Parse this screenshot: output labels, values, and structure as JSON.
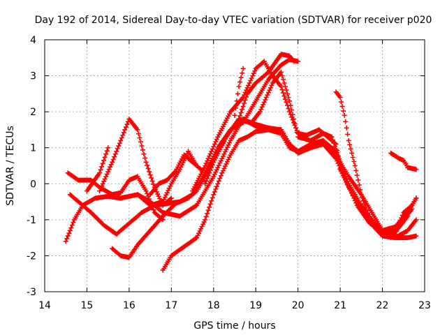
{
  "chart_data": {
    "type": "scatter",
    "title": "Day 192 of 2014, Sidereal Day-to-day VTEC variation (SDTVAR) for receiver p020",
    "xlabel": "GPS time / hours",
    "ylabel": "SDTVAR / TECUs",
    "xlim": [
      14,
      23
    ],
    "ylim": [
      -3,
      4
    ],
    "xticks": [
      "14",
      "15",
      "16",
      "17",
      "18",
      "19",
      "20",
      "21",
      "22",
      "23"
    ],
    "yticks": [
      "-3",
      "-2",
      "-1",
      "0",
      "1",
      "2",
      "3",
      "4"
    ],
    "grid": true,
    "marker": "+",
    "color": "#ff0000",
    "series": [
      {
        "name": "track-1",
        "points": [
          [
            14.5,
            -1.6
          ],
          [
            14.7,
            -1.0
          ],
          [
            14.9,
            -0.6
          ],
          [
            15.2,
            -0.4
          ],
          [
            15.5,
            -0.35
          ],
          [
            15.8,
            -0.4
          ],
          [
            16.2,
            -0.3
          ],
          [
            16.5,
            -0.5
          ],
          [
            16.8,
            -0.8
          ],
          [
            17.2,
            -0.9
          ],
          [
            17.6,
            -0.6
          ],
          [
            18.0,
            0.2
          ],
          [
            18.4,
            1.2
          ],
          [
            18.7,
            1.8
          ],
          [
            19.0,
            1.6
          ],
          [
            19.3,
            1.5
          ],
          [
            19.6,
            1.4
          ],
          [
            19.8,
            1.0
          ],
          [
            20.0,
            0.9
          ],
          [
            20.3,
            1.1
          ],
          [
            20.6,
            1.2
          ],
          [
            20.9,
            0.9
          ],
          [
            21.1,
            0.2
          ],
          [
            21.4,
            -0.6
          ],
          [
            21.7,
            -1.1
          ],
          [
            22.0,
            -1.3
          ],
          [
            22.3,
            -1.2
          ],
          [
            22.6,
            -0.8
          ],
          [
            22.8,
            -0.4
          ]
        ]
      },
      {
        "name": "track-2",
        "points": [
          [
            15.6,
            -1.8
          ],
          [
            15.8,
            -2.0
          ],
          [
            16.0,
            -2.05
          ],
          [
            16.2,
            -1.7
          ],
          [
            16.5,
            -1.3
          ],
          [
            16.8,
            -0.9
          ],
          [
            17.1,
            -0.55
          ],
          [
            17.4,
            -0.4
          ],
          [
            17.6,
            -0.2
          ],
          [
            17.8,
            0.2
          ],
          [
            18.1,
            0.9
          ],
          [
            18.4,
            1.5
          ],
          [
            18.7,
            1.75
          ],
          [
            19.0,
            1.65
          ],
          [
            19.3,
            1.55
          ],
          [
            19.6,
            1.5
          ],
          [
            19.8,
            1.1
          ],
          [
            20.0,
            0.9
          ],
          [
            20.3,
            1.0
          ],
          [
            20.6,
            1.1
          ],
          [
            20.9,
            0.7
          ],
          [
            21.2,
            -0.1
          ],
          [
            21.5,
            -0.7
          ],
          [
            21.8,
            -1.2
          ],
          [
            22.0,
            -1.45
          ],
          [
            22.3,
            -1.5
          ],
          [
            22.6,
            -1.3
          ],
          [
            22.8,
            -1.0
          ]
        ]
      },
      {
        "name": "track-3",
        "points": [
          [
            16.8,
            -2.4
          ],
          [
            17.0,
            -2.0
          ],
          [
            17.3,
            -1.75
          ],
          [
            17.6,
            -1.5
          ],
          [
            17.8,
            -1.0
          ],
          [
            18.0,
            -0.3
          ],
          [
            18.2,
            0.3
          ],
          [
            18.4,
            0.8
          ],
          [
            18.6,
            1.2
          ],
          [
            18.8,
            1.3
          ],
          [
            19.0,
            1.45
          ],
          [
            19.3,
            1.5
          ],
          [
            19.6,
            1.5
          ],
          [
            19.8,
            1.1
          ],
          [
            20.0,
            0.85
          ],
          [
            20.3,
            1.0
          ],
          [
            20.6,
            1.15
          ],
          [
            20.9,
            0.8
          ],
          [
            21.2,
            0.0
          ],
          [
            21.5,
            -0.6
          ],
          [
            21.8,
            -1.1
          ],
          [
            22.0,
            -1.3
          ],
          [
            22.3,
            -1.5
          ],
          [
            22.6,
            -1.5
          ],
          [
            22.8,
            -1.45
          ]
        ]
      },
      {
        "name": "track-4",
        "points": [
          [
            14.6,
            -0.3
          ],
          [
            14.8,
            -0.5
          ],
          [
            15.1,
            -0.8
          ],
          [
            15.4,
            -1.15
          ],
          [
            15.7,
            -1.4
          ],
          [
            16.0,
            -1.1
          ],
          [
            16.3,
            -0.8
          ],
          [
            16.6,
            -0.6
          ],
          [
            16.9,
            -0.55
          ],
          [
            17.2,
            -0.5
          ],
          [
            17.5,
            -0.3
          ],
          [
            17.8,
            0.3
          ],
          [
            18.1,
            1.0
          ],
          [
            18.4,
            1.5
          ],
          [
            18.7,
            1.7
          ],
          [
            19.0,
            2.3
          ],
          [
            19.3,
            2.9
          ],
          [
            19.6,
            3.3
          ],
          [
            19.8,
            3.45
          ],
          [
            20.0,
            3.4
          ]
        ]
      },
      {
        "name": "track-5",
        "points": [
          [
            17.5,
            -0.2
          ],
          [
            17.8,
            0.5
          ],
          [
            18.1,
            1.3
          ],
          [
            18.4,
            2.0
          ],
          [
            18.7,
            2.4
          ],
          [
            19.0,
            3.2
          ],
          [
            19.2,
            3.4
          ],
          [
            19.4,
            3.0
          ],
          [
            19.6,
            2.7
          ],
          [
            19.8,
            2.0
          ],
          [
            20.0,
            1.4
          ],
          [
            20.2,
            1.35
          ],
          [
            20.5,
            1.5
          ],
          [
            20.7,
            1.3
          ],
          [
            20.9,
            1.1
          ],
          [
            21.0,
            0.4
          ],
          [
            21.3,
            -0.3
          ],
          [
            21.6,
            -0.8
          ],
          [
            21.9,
            -1.2
          ],
          [
            22.1,
            -1.4
          ],
          [
            22.3,
            -1.3
          ],
          [
            22.5,
            -1.0
          ],
          [
            22.7,
            -0.7
          ]
        ]
      },
      {
        "name": "track-6",
        "points": [
          [
            17.8,
            0.0
          ],
          [
            18.0,
            0.6
          ],
          [
            18.3,
            1.3
          ],
          [
            18.6,
            1.8
          ],
          [
            18.9,
            1.7
          ],
          [
            19.1,
            2.0
          ],
          [
            19.4,
            2.8
          ],
          [
            19.6,
            3.1
          ],
          [
            19.8,
            2.3
          ],
          [
            20.0,
            1.3
          ],
          [
            20.3,
            1.2
          ],
          [
            20.6,
            1.4
          ],
          [
            20.8,
            1.3
          ],
          [
            21.0,
            0.6
          ],
          [
            21.2,
            0.2
          ],
          [
            21.5,
            -0.3
          ],
          [
            21.8,
            -0.9
          ],
          [
            22.0,
            -1.3
          ],
          [
            22.2,
            -1.5
          ],
          [
            22.4,
            -1.2
          ],
          [
            22.6,
            -0.9
          ]
        ]
      },
      {
        "name": "track-7",
        "points": [
          [
            18.6,
            1.8
          ],
          [
            18.8,
            2.5
          ],
          [
            19.0,
            2.8
          ],
          [
            19.3,
            3.1
          ],
          [
            19.6,
            3.6
          ],
          [
            19.8,
            3.55
          ],
          [
            19.9,
            3.4
          ]
        ]
      },
      {
        "name": "track-8",
        "points": [
          [
            18.5,
            1.9
          ],
          [
            18.6,
            2.7
          ],
          [
            18.7,
            3.2
          ]
        ]
      },
      {
        "name": "track-9",
        "points": [
          [
            20.9,
            2.55
          ],
          [
            21.0,
            2.4
          ],
          [
            21.1,
            1.9
          ],
          [
            21.2,
            1.2
          ],
          [
            21.35,
            0.5
          ],
          [
            21.5,
            -0.3
          ],
          [
            21.7,
            -1.0
          ],
          [
            21.9,
            -1.3
          ],
          [
            22.1,
            -1.4
          ]
        ]
      },
      {
        "name": "track-10",
        "points": [
          [
            14.55,
            0.3
          ],
          [
            14.8,
            0.1
          ],
          [
            15.1,
            0.1
          ],
          [
            15.3,
            -0.1
          ],
          [
            15.6,
            -0.3
          ],
          [
            15.8,
            -0.25
          ],
          [
            16.0,
            0.1
          ],
          [
            16.2,
            0.2
          ],
          [
            16.4,
            -0.2
          ],
          [
            16.6,
            -0.8
          ],
          [
            16.8,
            -1.0
          ]
        ]
      },
      {
        "name": "track-11",
        "points": [
          [
            15.0,
            -0.2
          ],
          [
            15.3,
            0.3
          ],
          [
            15.5,
            1.0
          ]
        ]
      },
      {
        "name": "track-12",
        "points": [
          [
            15.3,
            -0.2
          ],
          [
            15.6,
            0.6
          ],
          [
            15.8,
            1.2
          ],
          [
            16.0,
            1.8
          ],
          [
            16.2,
            1.5
          ],
          [
            16.4,
            0.6
          ],
          [
            16.6,
            -0.1
          ],
          [
            16.8,
            -0.6
          ],
          [
            17.0,
            -0.4
          ]
        ]
      },
      {
        "name": "track-13",
        "points": [
          [
            16.5,
            -0.3
          ],
          [
            16.7,
            0.0
          ],
          [
            16.9,
            0.1
          ],
          [
            17.1,
            0.35
          ],
          [
            17.3,
            0.8
          ],
          [
            17.5,
            0.6
          ],
          [
            17.7,
            0.4
          ]
        ]
      },
      {
        "name": "track-14",
        "points": [
          [
            16.2,
            -0.3
          ],
          [
            16.5,
            -0.6
          ],
          [
            16.8,
            -0.5
          ],
          [
            17.0,
            0.0
          ],
          [
            17.2,
            0.4
          ],
          [
            17.4,
            0.9
          ],
          [
            17.6,
            0.5
          ]
        ]
      },
      {
        "name": "track-15",
        "points": [
          [
            22.2,
            0.85
          ],
          [
            22.4,
            0.7
          ],
          [
            22.5,
            0.65
          ],
          [
            22.6,
            0.45
          ],
          [
            22.8,
            0.4
          ]
        ]
      },
      {
        "name": "track-16",
        "points": [
          [
            22.0,
            -1.3
          ],
          [
            22.3,
            -1.4
          ],
          [
            22.5,
            -0.8
          ],
          [
            22.7,
            -0.6
          ],
          [
            22.8,
            -0.4
          ]
        ]
      }
    ]
  }
}
